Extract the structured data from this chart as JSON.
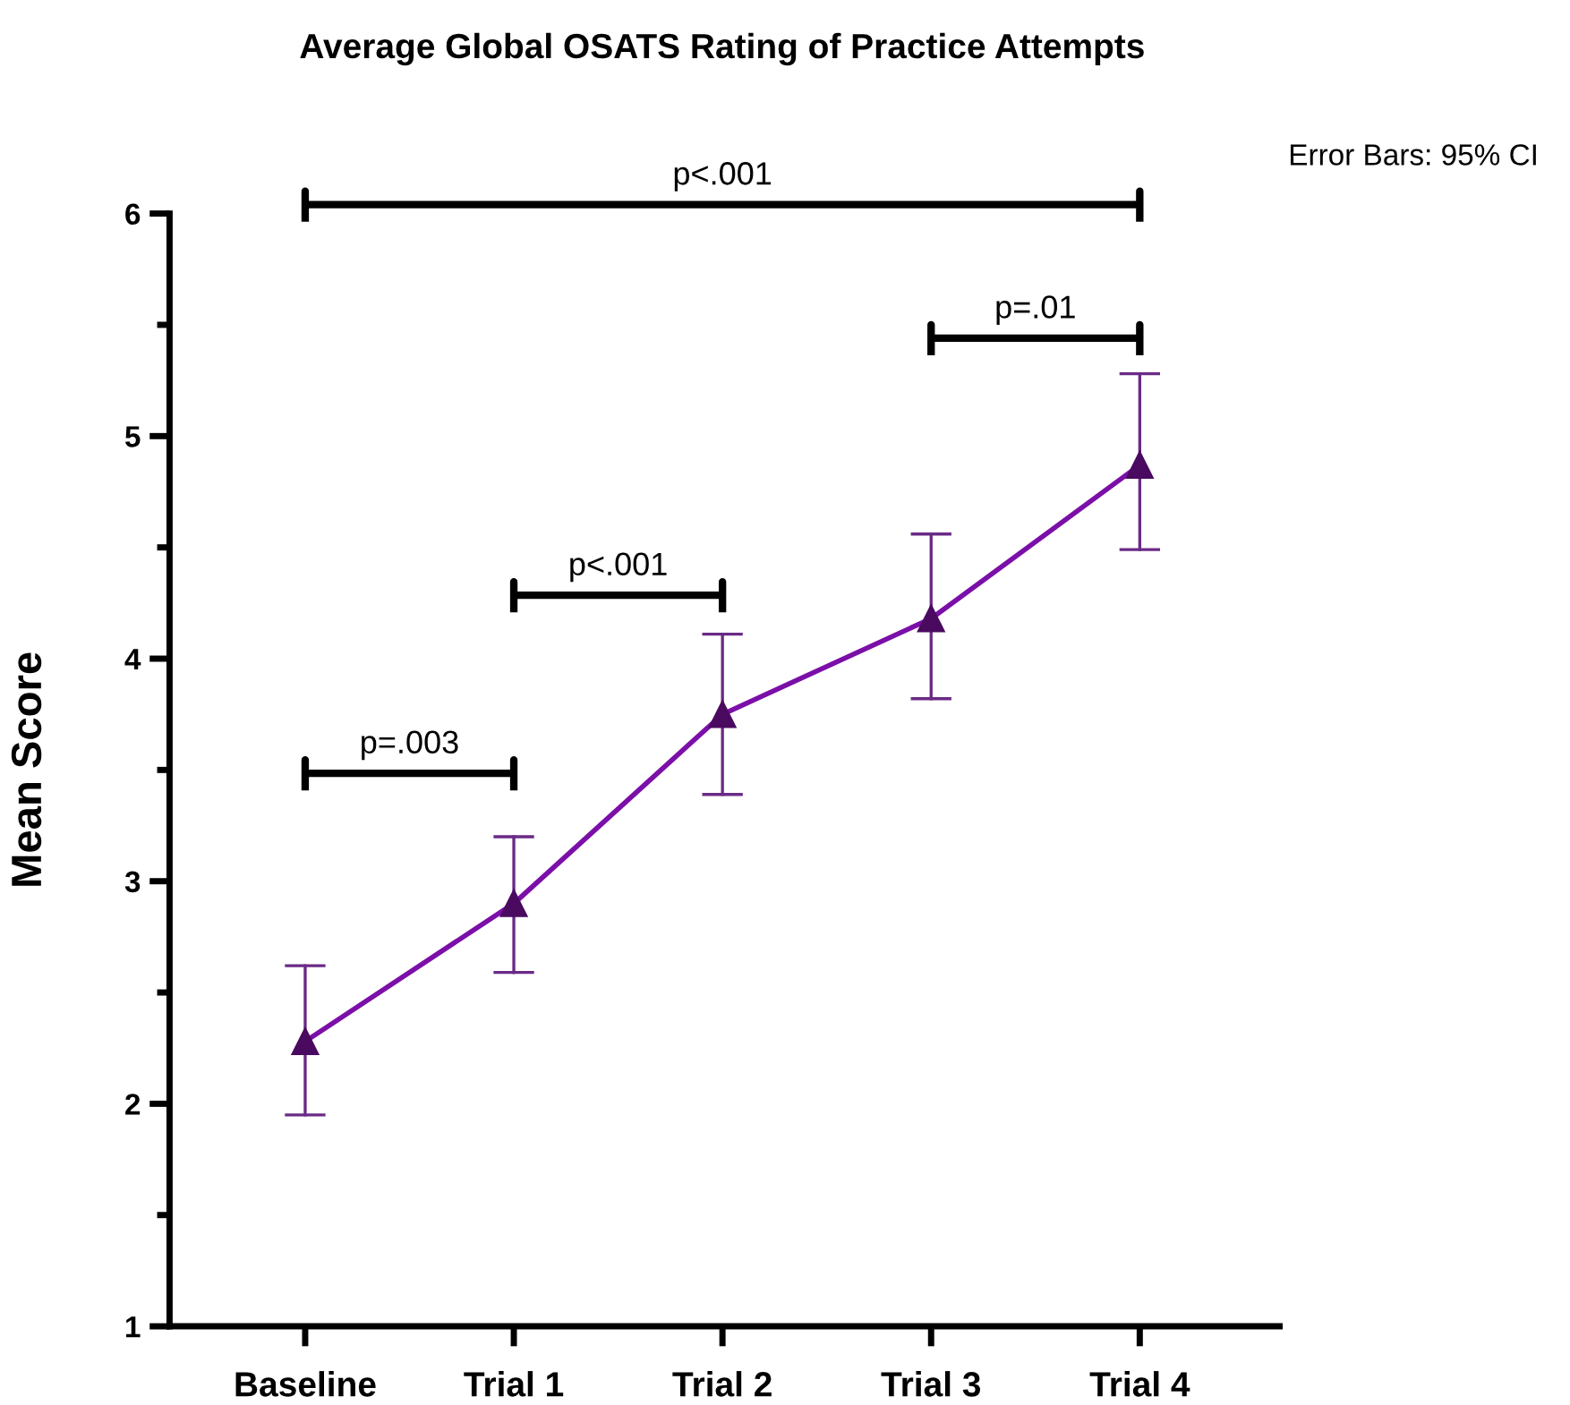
{
  "chart_data": {
    "type": "line",
    "title": "Average Global OSATS Rating of Practice Attempts",
    "ylabel": "Mean Score",
    "categories": [
      "Baseline",
      "Trial 1",
      "Trial 2",
      "Trial 3",
      "Trial 4"
    ],
    "series": [
      {
        "color": "#7b0fa8",
        "values": [
          2.28,
          2.9,
          3.75,
          4.18,
          4.87
        ],
        "errors": [
          [
            1.95,
            2.62
          ],
          [
            2.59,
            3.2
          ],
          [
            3.39,
            4.11
          ],
          [
            3.82,
            4.56
          ],
          [
            4.49,
            5.28
          ]
        ]
      }
    ],
    "marker": "triangle",
    "line_style": "solid",
    "grid": false,
    "ylim": [
      1,
      6
    ],
    "yticks": [
      1,
      {
        "value": 1.5,
        "label": null
      },
      2,
      {
        "value": 2.5,
        "label": null
      },
      3,
      {
        "value": 3.5,
        "label": null
      },
      4,
      {
        "value": 4.5,
        "label": null
      },
      5,
      {
        "value": 5.5,
        "label": null
      },
      6
    ],
    "annotations": [
      "p<.001",
      "p=.003",
      "p<.001",
      "p=.01",
      "Error Bars: 95% CI"
    ]
  }
}
